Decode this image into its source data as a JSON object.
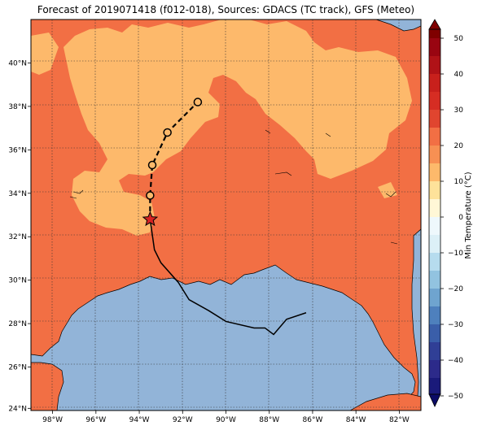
{
  "title": "Forecast of 2019071418 (f012-018), Sources: GDACS (TC track), GFS (Meteo)",
  "colorbar": {
    "label": "Min Temperature (°C)",
    "ticks": [
      "50",
      "40",
      "30",
      "20",
      "10",
      "0",
      "−10",
      "−20",
      "−30",
      "−40",
      "−50"
    ]
  },
  "axes": {
    "lon_ticks": [
      "98°W",
      "96°W",
      "94°W",
      "92°W",
      "90°W",
      "88°W",
      "86°W",
      "84°W",
      "82°W"
    ],
    "lat_ticks": [
      "40°N",
      "38°N",
      "36°N",
      "34°N",
      "32°N",
      "30°N",
      "28°N",
      "26°N",
      "24°N"
    ]
  },
  "colors": {
    "ocean": "#92b4d8",
    "temp_20_30": "#f26f44",
    "temp_10_20": "#fdb96b",
    "track_past": "#000000",
    "storm_marker": "#d62323"
  },
  "track": {
    "past_positions": [
      {
        "lon": -86.3,
        "lat": 28.5
      },
      {
        "lon": -87.2,
        "lat": 28.2
      },
      {
        "lon": -87.8,
        "lat": 27.5
      },
      {
        "lon": -88.2,
        "lat": 27.8
      },
      {
        "lon": -88.7,
        "lat": 27.8
      },
      {
        "lon": -90.0,
        "lat": 28.1
      },
      {
        "lon": -90.8,
        "lat": 28.6
      },
      {
        "lon": -91.7,
        "lat": 29.1
      },
      {
        "lon": -92.2,
        "lat": 29.9
      },
      {
        "lon": -93.0,
        "lat": 30.8
      },
      {
        "lon": -93.3,
        "lat": 31.4
      },
      {
        "lon": -93.5,
        "lat": 32.8
      }
    ],
    "current_position": {
      "lon": -93.5,
      "lat": 32.8
    },
    "forecast_positions": [
      {
        "lon": -93.5,
        "lat": 33.9
      },
      {
        "lon": -93.4,
        "lat": 35.3
      },
      {
        "lon": -92.7,
        "lat": 36.8
      },
      {
        "lon": -91.3,
        "lat": 38.2
      }
    ]
  }
}
